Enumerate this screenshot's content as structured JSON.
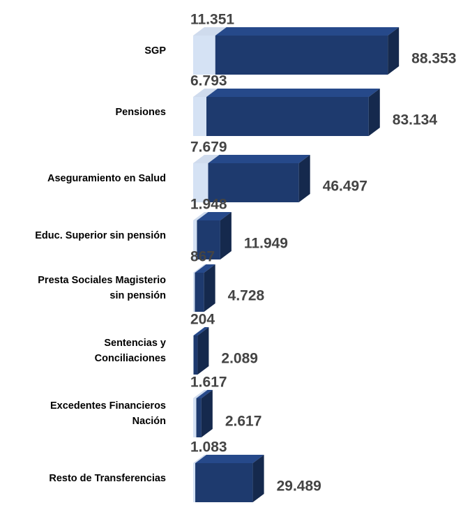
{
  "chart_data": {
    "type": "bar3d_stacked_horizontal",
    "categories": [
      "SGP",
      "Pensiones",
      "Aseguramiento en Salud",
      "Educ. Superior sin pensión",
      "Presta Sociales Magisterio\nsin pensión",
      "Sentencias y\nConciliaciones",
      "Excedentes Financieros\nNación",
      "Resto de Transferencias"
    ],
    "series": [
      {
        "color": "#d5e2f4",
        "values": [
          11351,
          6793,
          7679,
          1948,
          867,
          204,
          1617,
          1083
        ],
        "value_labels": [
          "11.351",
          "6.793",
          "7.679",
          "1.948",
          "867",
          "204",
          "1.617",
          "1.083"
        ]
      },
      {
        "color": "#1e3a6e",
        "values": [
          88353,
          83134,
          46497,
          11949,
          4728,
          2089,
          2617,
          29489
        ],
        "value_labels": [
          "88.353",
          "83.134",
          "46.497",
          "11.949",
          "4.728",
          "2.089",
          "2.617",
          "29.489"
        ]
      }
    ]
  }
}
